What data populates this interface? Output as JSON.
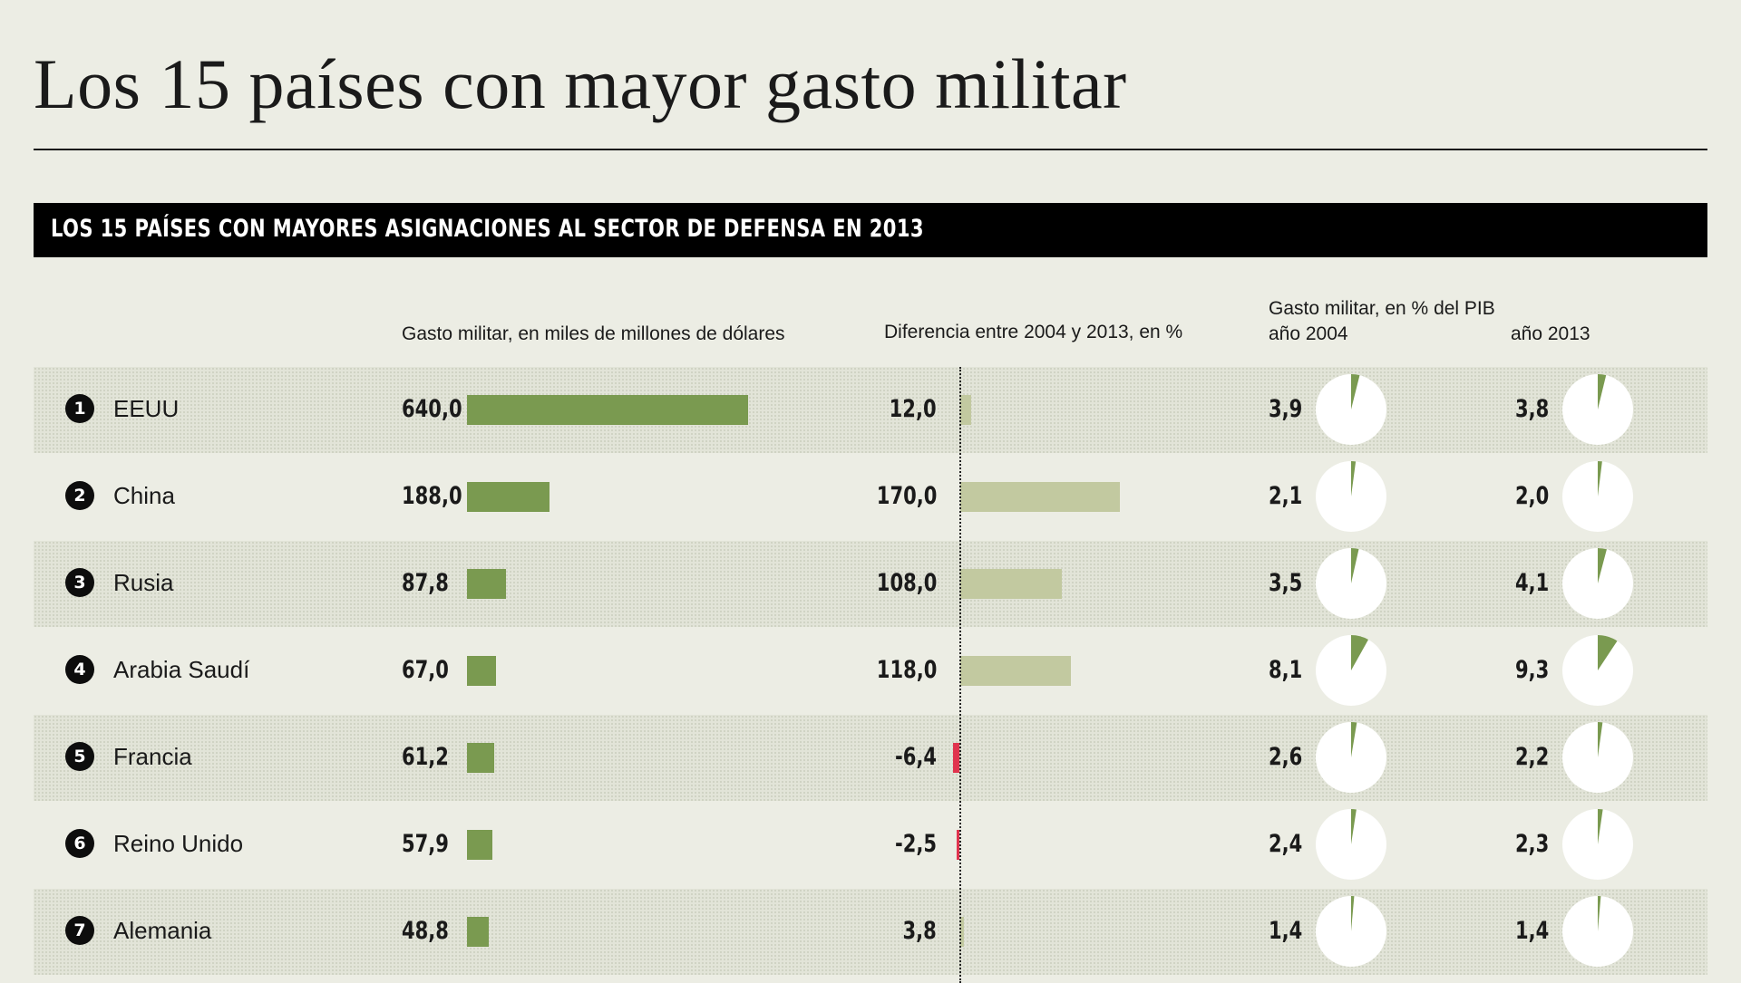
{
  "title": "Los 15 países con mayor gasto militar",
  "banner": "LOS 15 PAÍSES CON MAYORES ASIGNACIONES AL SECTOR DE DEFENSA EN 2013",
  "headers": {
    "spending": "Gasto militar, en miles de millones de dólares",
    "diff": "Diferencia entre 2004 y 2013, en %",
    "gdp": "Gasto militar, en % del PIB",
    "year2004": "año 2004",
    "year2013": "año 2013"
  },
  "colors": {
    "spending_bar": "#7a9a50",
    "diff_positive": "#c2c9a0",
    "diff_negative": "#e0344e",
    "pie_fill": "#7a9a50",
    "background": "#ecede4"
  },
  "chart_data": {
    "type": "table",
    "columns": [
      "Gasto militar, en miles de millones de dólares",
      "Diferencia entre 2004 y 2013, en %",
      "año 2004",
      "año 2013"
    ],
    "rows": [
      {
        "rank": "1",
        "country": "EEUU",
        "spending": 640.0,
        "spending_label": "640,0",
        "diff": 12.0,
        "diff_label": "12,0",
        "gdp2004": 3.9,
        "gdp2004_label": "3,9",
        "gdp2013": 3.8,
        "gdp2013_label": "3,8"
      },
      {
        "rank": "2",
        "country": "China",
        "spending": 188.0,
        "spending_label": "188,0",
        "diff": 170.0,
        "diff_label": "170,0",
        "gdp2004": 2.1,
        "gdp2004_label": "2,1",
        "gdp2013": 2.0,
        "gdp2013_label": "2,0"
      },
      {
        "rank": "3",
        "country": "Rusia",
        "spending": 87.8,
        "spending_label": "87,8",
        "diff": 108.0,
        "diff_label": "108,0",
        "gdp2004": 3.5,
        "gdp2004_label": "3,5",
        "gdp2013": 4.1,
        "gdp2013_label": "4,1"
      },
      {
        "rank": "4",
        "country": "Arabia Saudí",
        "spending": 67.0,
        "spending_label": "67,0",
        "diff": 118.0,
        "diff_label": "118,0",
        "gdp2004": 8.1,
        "gdp2004_label": "8,1",
        "gdp2013": 9.3,
        "gdp2013_label": "9,3"
      },
      {
        "rank": "5",
        "country": "Francia",
        "spending": 61.2,
        "spending_label": "61,2",
        "diff": -6.4,
        "diff_label": "-6,4",
        "gdp2004": 2.6,
        "gdp2004_label": "2,6",
        "gdp2013": 2.2,
        "gdp2013_label": "2,2"
      },
      {
        "rank": "6",
        "country": "Reino Unido",
        "spending": 57.9,
        "spending_label": "57,9",
        "diff": -2.5,
        "diff_label": "-2,5",
        "gdp2004": 2.4,
        "gdp2004_label": "2,4",
        "gdp2013": 2.3,
        "gdp2013_label": "2,3"
      },
      {
        "rank": "7",
        "country": "Alemania",
        "spending": 48.8,
        "spending_label": "48,8",
        "diff": 3.8,
        "diff_label": "3,8",
        "gdp2004": 1.4,
        "gdp2004_label": "1,4",
        "gdp2013": 1.4,
        "gdp2013_label": "1,4"
      }
    ]
  }
}
